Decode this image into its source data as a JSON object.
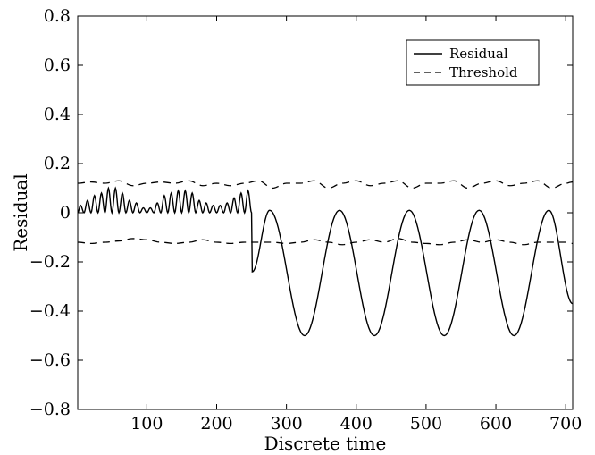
{
  "chart_data": {
    "type": "line",
    "title": "",
    "xlabel": "Discrete time",
    "ylabel": "Residual",
    "xlim": [
      1,
      710
    ],
    "ylim": [
      -0.8,
      0.8
    ],
    "x_ticks": [
      100,
      200,
      300,
      400,
      500,
      600,
      700
    ],
    "y_ticks": [
      -0.8,
      -0.6,
      -0.4,
      -0.2,
      0,
      0.2,
      0.4,
      0.6,
      0.8
    ],
    "y_tick_labels": [
      "−0.8",
      "−0.6",
      "−0.4",
      "−0.2",
      "0",
      "0.2",
      "0.4",
      "0.6",
      "0.8"
    ],
    "x_tick_labels": [
      "100",
      "200",
      "300",
      "400",
      "500",
      "600",
      "700"
    ],
    "grid": false,
    "legend_position": "top-right",
    "series": [
      {
        "name": "Residual",
        "style": "solid",
        "color": "#000000",
        "description_points": [
          [
            1,
            0.0
          ],
          [
            5,
            0.03
          ],
          [
            10,
            0.0
          ],
          [
            15,
            0.05
          ],
          [
            20,
            0.0
          ],
          [
            25,
            0.07
          ],
          [
            30,
            0.0
          ],
          [
            35,
            0.08
          ],
          [
            40,
            0.0
          ],
          [
            45,
            0.1
          ],
          [
            50,
            0.0
          ],
          [
            55,
            0.1
          ],
          [
            60,
            0.0
          ],
          [
            65,
            0.08
          ],
          [
            70,
            0.0
          ],
          [
            75,
            0.05
          ],
          [
            80,
            0.0
          ],
          [
            85,
            0.04
          ],
          [
            90,
            0.0
          ],
          [
            95,
            0.02
          ],
          [
            100,
            0.0
          ],
          [
            105,
            0.02
          ],
          [
            110,
            0.0
          ],
          [
            115,
            0.04
          ],
          [
            120,
            0.0
          ],
          [
            125,
            0.07
          ],
          [
            130,
            0.0
          ],
          [
            135,
            0.08
          ],
          [
            140,
            0.0
          ],
          [
            145,
            0.09
          ],
          [
            150,
            0.0
          ],
          [
            155,
            0.09
          ],
          [
            160,
            0.0
          ],
          [
            165,
            0.08
          ],
          [
            170,
            0.0
          ],
          [
            175,
            0.05
          ],
          [
            180,
            0.0
          ],
          [
            185,
            0.04
          ],
          [
            190,
            0.0
          ],
          [
            195,
            0.03
          ],
          [
            200,
            0.0
          ],
          [
            205,
            0.03
          ],
          [
            210,
            0.0
          ],
          [
            215,
            0.04
          ],
          [
            220,
            0.0
          ],
          [
            225,
            0.06
          ],
          [
            230,
            0.0
          ],
          [
            235,
            0.08
          ],
          [
            240,
            0.0
          ],
          [
            245,
            0.09
          ],
          [
            250,
            0.0
          ],
          [
            251,
            -0.24
          ],
          [
            276,
            0.01
          ],
          [
            326,
            -0.5
          ],
          [
            376,
            0.01
          ],
          [
            426,
            -0.5
          ],
          [
            476,
            0.01
          ],
          [
            526,
            -0.5
          ],
          [
            576,
            0.01
          ],
          [
            626,
            -0.5
          ],
          [
            676,
            0.01
          ],
          [
            710,
            -0.37
          ]
        ]
      },
      {
        "name": "Threshold",
        "style": "dashed",
        "color": "#000000",
        "upper": [
          [
            1,
            0.12
          ],
          [
            20,
            0.125
          ],
          [
            40,
            0.12
          ],
          [
            60,
            0.13
          ],
          [
            80,
            0.11
          ],
          [
            100,
            0.12
          ],
          [
            120,
            0.125
          ],
          [
            140,
            0.12
          ],
          [
            160,
            0.13
          ],
          [
            180,
            0.11
          ],
          [
            200,
            0.12
          ],
          [
            220,
            0.11
          ],
          [
            240,
            0.12
          ],
          [
            260,
            0.13
          ],
          [
            280,
            0.1
          ],
          [
            300,
            0.12
          ],
          [
            320,
            0.12
          ],
          [
            340,
            0.13
          ],
          [
            360,
            0.1
          ],
          [
            380,
            0.12
          ],
          [
            400,
            0.13
          ],
          [
            420,
            0.11
          ],
          [
            440,
            0.12
          ],
          [
            460,
            0.13
          ],
          [
            480,
            0.1
          ],
          [
            500,
            0.12
          ],
          [
            520,
            0.12
          ],
          [
            540,
            0.13
          ],
          [
            560,
            0.1
          ],
          [
            580,
            0.12
          ],
          [
            600,
            0.13
          ],
          [
            620,
            0.11
          ],
          [
            640,
            0.12
          ],
          [
            660,
            0.13
          ],
          [
            680,
            0.1
          ],
          [
            700,
            0.12
          ],
          [
            710,
            0.125
          ]
        ],
        "lower": [
          [
            1,
            -0.12
          ],
          [
            20,
            -0.125
          ],
          [
            40,
            -0.12
          ],
          [
            60,
            -0.115
          ],
          [
            80,
            -0.105
          ],
          [
            100,
            -0.11
          ],
          [
            120,
            -0.12
          ],
          [
            140,
            -0.125
          ],
          [
            160,
            -0.12
          ],
          [
            180,
            -0.11
          ],
          [
            200,
            -0.12
          ],
          [
            220,
            -0.125
          ],
          [
            240,
            -0.12
          ],
          [
            260,
            -0.12
          ],
          [
            280,
            -0.12
          ],
          [
            300,
            -0.125
          ],
          [
            320,
            -0.12
          ],
          [
            340,
            -0.11
          ],
          [
            360,
            -0.12
          ],
          [
            380,
            -0.13
          ],
          [
            400,
            -0.12
          ],
          [
            420,
            -0.11
          ],
          [
            440,
            -0.12
          ],
          [
            460,
            -0.105
          ],
          [
            480,
            -0.12
          ],
          [
            500,
            -0.125
          ],
          [
            520,
            -0.13
          ],
          [
            540,
            -0.12
          ],
          [
            560,
            -0.11
          ],
          [
            580,
            -0.12
          ],
          [
            600,
            -0.11
          ],
          [
            620,
            -0.12
          ],
          [
            640,
            -0.13
          ],
          [
            660,
            -0.12
          ],
          [
            680,
            -0.12
          ],
          [
            700,
            -0.12
          ],
          [
            710,
            -0.125
          ]
        ]
      }
    ]
  }
}
